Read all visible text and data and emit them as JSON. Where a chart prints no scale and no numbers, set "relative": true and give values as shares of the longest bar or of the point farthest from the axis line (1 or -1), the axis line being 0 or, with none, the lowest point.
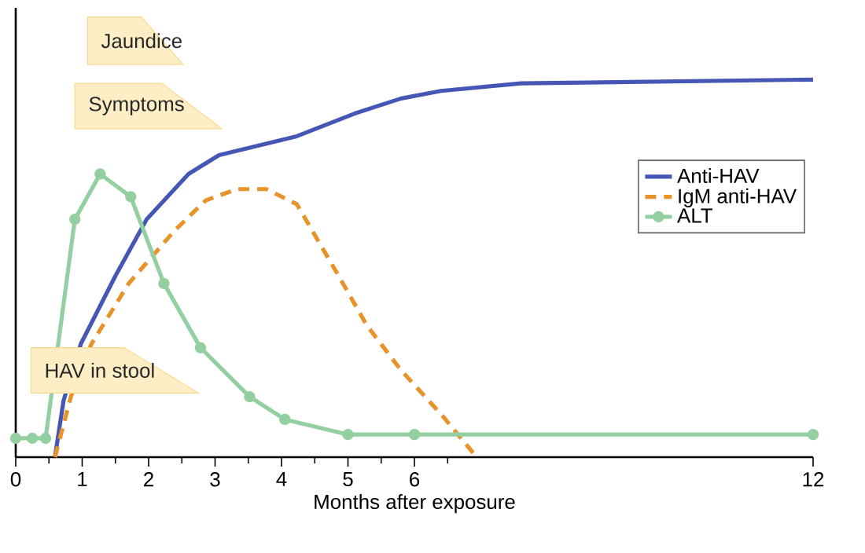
{
  "chart_data": {
    "type": "line",
    "relative": true,
    "xlabel": "Months after exposure",
    "xlim": [
      0,
      12
    ],
    "xticks": [
      0,
      1,
      2,
      3,
      4,
      5,
      6,
      12
    ],
    "legend": "right",
    "annotations": [
      "Jaundice",
      "Symptoms",
      "HAV in stool"
    ],
    "series": [
      {
        "name": "Anti-HAV",
        "color": "#4656b4",
        "line_style": "solid",
        "marker": "none",
        "x": [
          0.59,
          0.72,
          0.98,
          1.5,
          1.97,
          2.6,
          3.06,
          4.23,
          5.1,
          5.8,
          6.4,
          7.6,
          12
        ],
        "values": [
          0,
          0.15,
          0.3,
          0.48,
          0.63,
          0.75,
          0.8,
          0.85,
          0.91,
          0.95,
          0.97,
          0.99,
          1
        ]
      },
      {
        "name": "IgM anti-HAV",
        "color": "#e8922a",
        "line_style": "dashed",
        "marker": "none",
        "x": [
          0.59,
          0.83,
          1.14,
          1.7,
          2.39,
          2.86,
          3.33,
          3.77,
          4.23,
          4.86,
          5.28,
          5.8,
          6.42,
          6.89
        ],
        "values": [
          0,
          0.16,
          0.3,
          0.46,
          0.6,
          0.68,
          0.71,
          0.71,
          0.67,
          0.48,
          0.35,
          0.23,
          0.11,
          0.01
        ]
      },
      {
        "name": "ALT",
        "color": "#93cfa0",
        "line_style": "solid",
        "marker": "circle",
        "x": [
          0,
          0.25,
          0.45,
          0.89,
          1.27,
          1.73,
          2.23,
          2.78,
          3.52,
          4.05,
          5,
          6,
          12
        ],
        "values": [
          0.05,
          0.05,
          0.05,
          0.63,
          0.75,
          0.69,
          0.46,
          0.29,
          0.16,
          0.1,
          0.06,
          0.06,
          0.06
        ]
      }
    ]
  }
}
